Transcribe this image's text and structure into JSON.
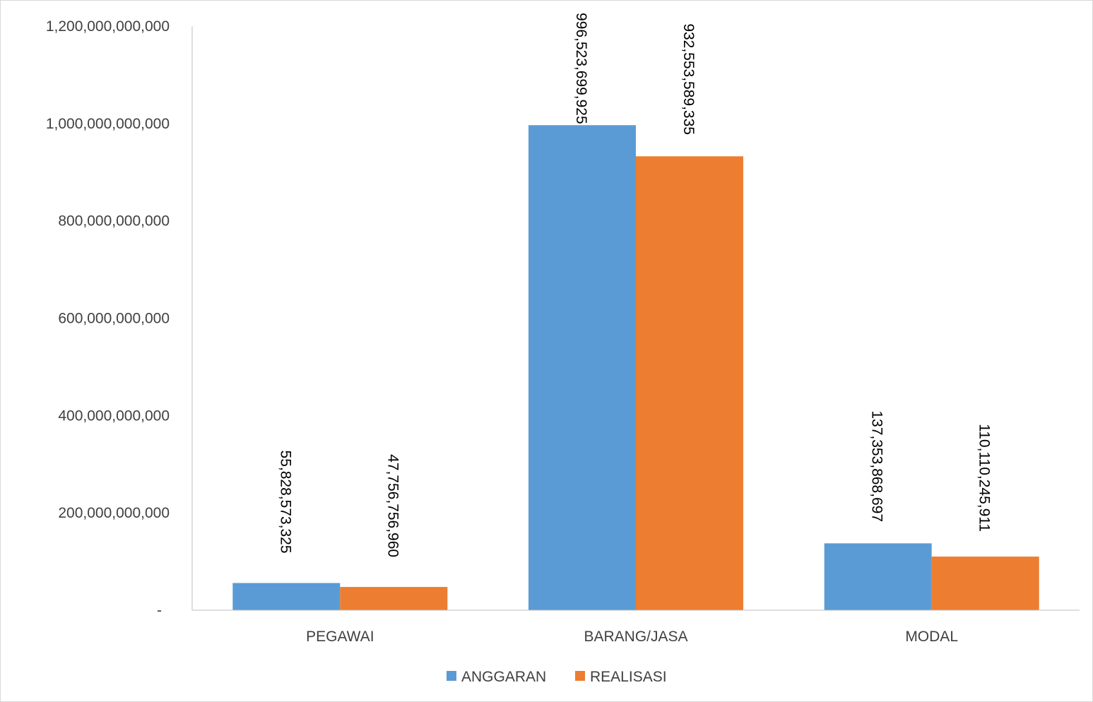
{
  "chart_data": {
    "type": "bar",
    "title": "",
    "xlabel": "",
    "ylabel": "",
    "categories": [
      "PEGAWAI",
      "BARANG/JASA",
      "MODAL"
    ],
    "series": [
      {
        "name": "ANGGARAN",
        "color": "#5b9bd5",
        "values": [
          55828573325,
          996523699925,
          137353868697
        ],
        "labels": [
          "55,828,573,325",
          "996,523,699,925",
          "137,353,868,697"
        ]
      },
      {
        "name": "REALISASI",
        "color": "#ed7d31",
        "values": [
          47756756960,
          932553589335,
          110110245911
        ],
        "labels": [
          "47,756,756,960",
          "932,553,589,335",
          "110,110,245,911"
        ]
      }
    ],
    "ylim": [
      0,
      1200000000000
    ],
    "yticks": [
      0,
      200000000000,
      400000000000,
      600000000000,
      800000000000,
      1000000000000,
      1200000000000
    ],
    "ytick_labels": [
      "-",
      "200,000,000,000",
      "400,000,000,000",
      "600,000,000,000",
      "800,000,000,000",
      "1,000,000,000,000",
      "1,200,000,000,000"
    ],
    "grid": false,
    "legend": "bottom",
    "data_labels": "vertical, rotated 90 degrees"
  }
}
